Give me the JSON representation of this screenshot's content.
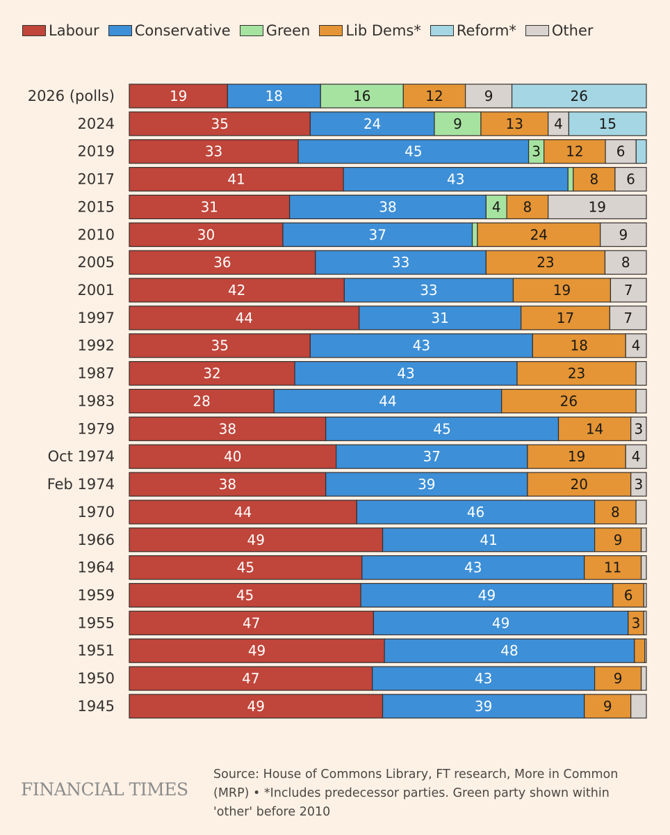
{
  "colors": {
    "Labour": "#c0453a",
    "Conservative": "#3d8fd7",
    "Green": "#a6e3a1",
    "Lib Dems*": "#e59535",
    "Reform*": "#a5d6e3",
    "Other": "#d8d3cf"
  },
  "legend": [
    {
      "label": "Labour",
      "color": "#c0453a"
    },
    {
      "label": "Conservative",
      "color": "#3d8fd7"
    },
    {
      "label": "Green",
      "color": "#a6e3a1"
    },
    {
      "label": "Lib Dems*",
      "color": "#e59535"
    },
    {
      "label": "Reform*",
      "color": "#a5d6e3"
    },
    {
      "label": "Other",
      "color": "#d8d3cf"
    }
  ],
  "footer": {
    "logo": "FINANCIAL TIMES",
    "source": "Source: House of Commons Library, FT research, More in Common (MRP) • *Includes predecessor parties. Green party shown within 'other' before 2010"
  },
  "chart_data": {
    "type": "bar",
    "orientation": "horizontal",
    "stacked": true,
    "normalized": true,
    "categories": [
      "2026 (polls)",
      "2024",
      "2019",
      "2017",
      "2015",
      "2010",
      "2005",
      "2001",
      "1997",
      "1992",
      "1987",
      "1983",
      "1979",
      "Oct 1974",
      "Feb 1974",
      "1970",
      "1966",
      "1964",
      "1959",
      "1955",
      "1951",
      "1950",
      "1945"
    ],
    "series": [
      {
        "name": "Labour",
        "values": [
          19,
          35,
          33,
          41,
          31,
          30,
          36,
          42,
          44,
          35,
          32,
          28,
          38,
          40,
          38,
          44,
          49,
          45,
          45,
          47,
          49,
          47,
          49
        ]
      },
      {
        "name": "Conservative",
        "values": [
          18,
          24,
          45,
          43,
          38,
          37,
          33,
          33,
          31,
          43,
          43,
          44,
          45,
          37,
          39,
          46,
          41,
          43,
          49,
          49,
          48,
          43,
          39
        ]
      },
      {
        "name": "Green",
        "values": [
          16,
          9,
          3,
          1,
          4,
          1,
          0,
          0,
          0,
          0,
          0,
          0,
          0,
          0,
          0,
          0,
          0,
          0,
          0,
          0,
          0,
          0,
          0
        ]
      },
      {
        "name": "Lib Dems*",
        "values": [
          12,
          13,
          12,
          8,
          8,
          24,
          23,
          19,
          17,
          18,
          23,
          26,
          14,
          19,
          20,
          8,
          9,
          11,
          6,
          3,
          2,
          9,
          9
        ]
      },
      {
        "name": "Other",
        "values": [
          9,
          4,
          6,
          6,
          19,
          9,
          8,
          7,
          7,
          4,
          2,
          2,
          3,
          4,
          3,
          2,
          1,
          1,
          0.5,
          0.5,
          0.3,
          1,
          3
        ]
      },
      {
        "name": "Reform*",
        "values": [
          26,
          15,
          2,
          0,
          0,
          0,
          0,
          0,
          0,
          0,
          0,
          0,
          0,
          0,
          0,
          0,
          0,
          0,
          0,
          0,
          0,
          0,
          0
        ]
      }
    ],
    "data_labels": [
      [
        "19",
        "18",
        "16",
        "12",
        "9",
        "26"
      ],
      [
        "35",
        "24",
        "9",
        "13",
        "4",
        "15"
      ],
      [
        "33",
        "45",
        "3",
        "12",
        "6",
        ""
      ],
      [
        "41",
        "43",
        "",
        "8",
        "6",
        ""
      ],
      [
        "31",
        "38",
        "4",
        "8",
        "19",
        ""
      ],
      [
        "30",
        "37",
        "",
        "24",
        "9",
        ""
      ],
      [
        "36",
        "33",
        "",
        "23",
        "8",
        ""
      ],
      [
        "42",
        "33",
        "",
        "19",
        "7",
        ""
      ],
      [
        "44",
        "31",
        "",
        "17",
        "7",
        ""
      ],
      [
        "35",
        "43",
        "",
        "18",
        "4",
        ""
      ],
      [
        "32",
        "43",
        "",
        "23",
        "",
        ""
      ],
      [
        "28",
        "44",
        "",
        "26",
        "",
        ""
      ],
      [
        "38",
        "45",
        "",
        "14",
        "3",
        ""
      ],
      [
        "40",
        "37",
        "",
        "19",
        "4",
        ""
      ],
      [
        "38",
        "39",
        "",
        "20",
        "3",
        ""
      ],
      [
        "44",
        "46",
        "",
        "8",
        "",
        ""
      ],
      [
        "49",
        "41",
        "",
        "9",
        "",
        ""
      ],
      [
        "45",
        "43",
        "",
        "11",
        "",
        ""
      ],
      [
        "45",
        "49",
        "",
        "6",
        "",
        ""
      ],
      [
        "47",
        "49",
        "",
        "3",
        "",
        ""
      ],
      [
        "49",
        "48",
        "",
        "",
        "",
        ""
      ],
      [
        "47",
        "43",
        "",
        "9",
        "",
        ""
      ],
      [
        "49",
        "39",
        "",
        "9",
        "",
        ""
      ]
    ],
    "legend_position": "top",
    "grid": false
  }
}
